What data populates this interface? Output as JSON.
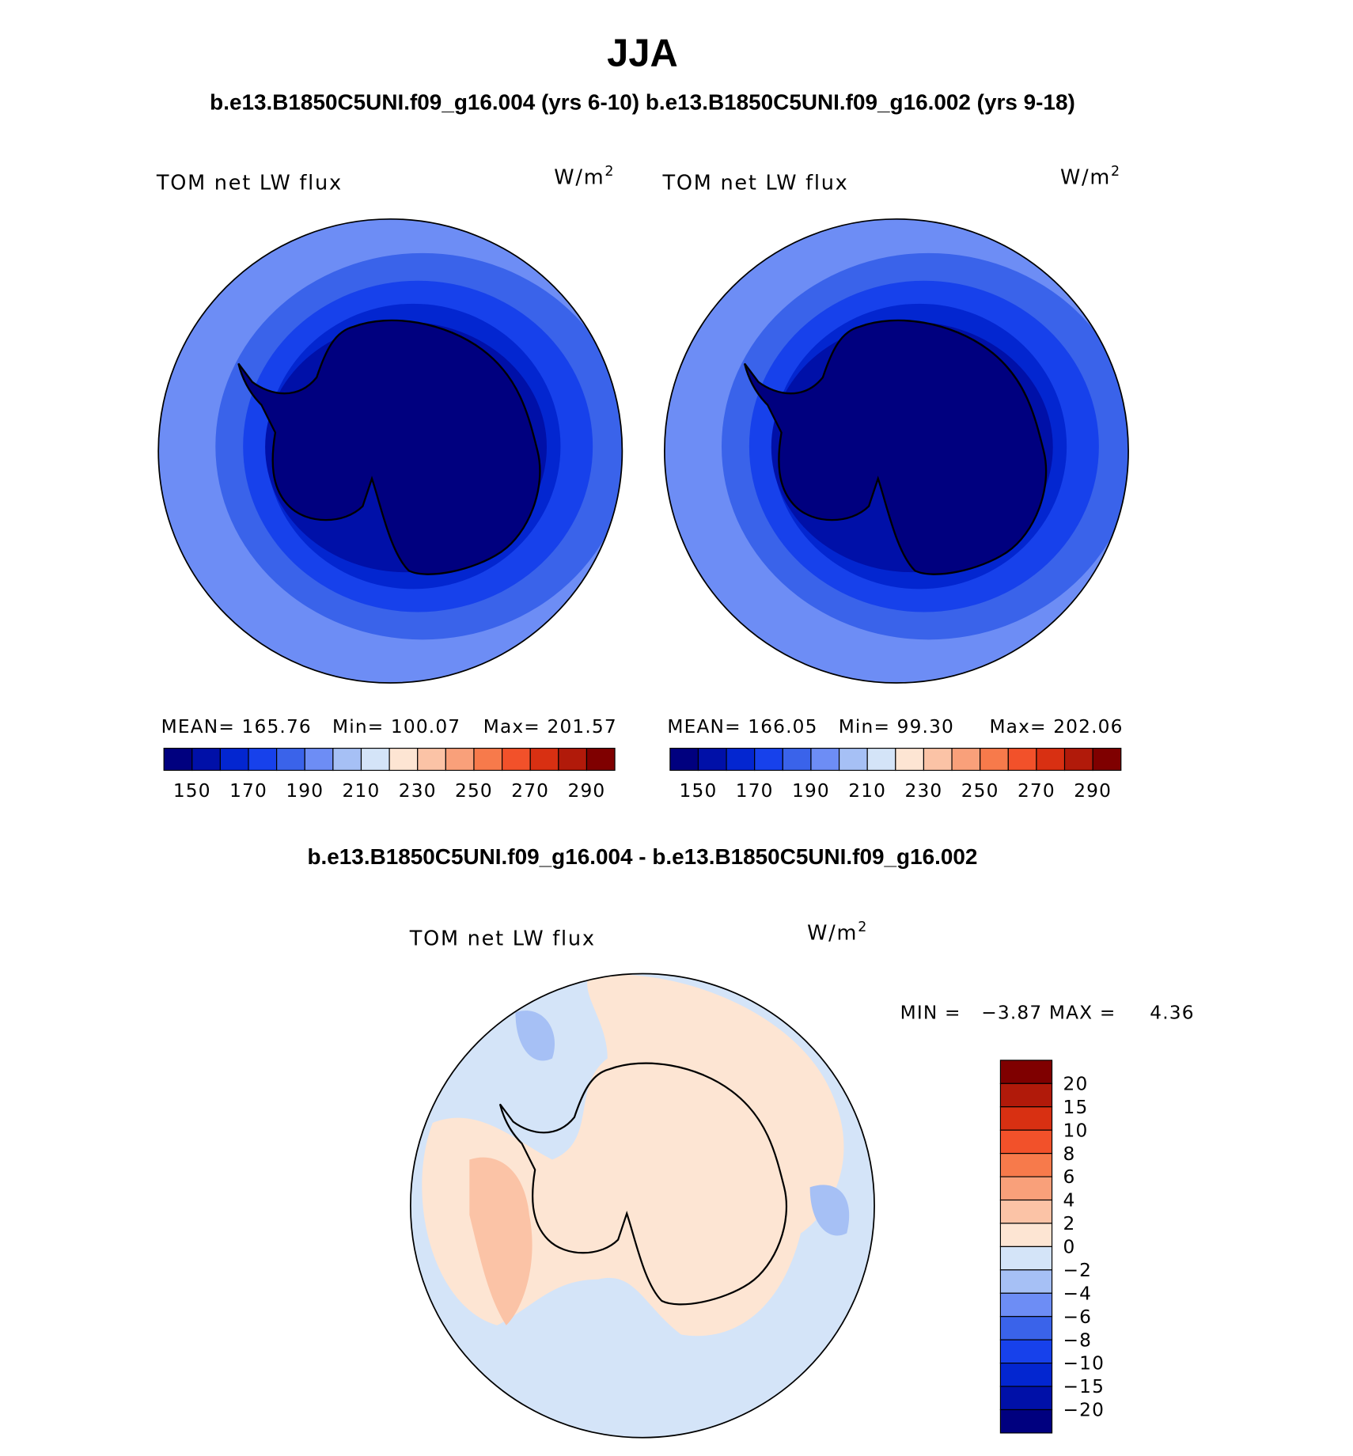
{
  "title": "JJA",
  "subtitle": "b.e13.B1850C5UNI.f09_g16.004 (yrs 6-10) b.e13.B1850C5UNI.f09_g16.002 (yrs 9-18)",
  "panels": [
    {
      "label": "TOM net LW flux",
      "units": "W/m",
      "units_exp": "2",
      "stats": [
        "MEAN= 165.76",
        "Min= 100.07",
        "Max= 201.57"
      ]
    },
    {
      "label": "TOM net LW flux",
      "units": "W/m",
      "units_exp": "2",
      "stats": [
        "MEAN= 166.05",
        "Min=  99.30",
        "Max= 202.06"
      ]
    }
  ],
  "colorbar": {
    "labels": [
      "150",
      "170",
      "190",
      "210",
      "230",
      "250",
      "270",
      "290"
    ],
    "colors": [
      "#00007f",
      "#0010a8",
      "#0326d0",
      "#1741eb",
      "#3a63ea",
      "#6d8df5",
      "#a6c0f5",
      "#d4e4f8",
      "#fde5d3",
      "#fbc3a6",
      "#f9a07a",
      "#f77a4b",
      "#f2512a",
      "#d83012",
      "#b11a0a",
      "#7f0000"
    ]
  },
  "difference": {
    "title": "b.e13.B1850C5UNI.f09_g16.004 - b.e13.B1850C5UNI.f09_g16.002",
    "label": "TOM net LW flux",
    "units": "W/m",
    "units_exp": "2",
    "stats": "MIN =   −3.87 MAX =     4.36",
    "colorbar_labels": [
      "20",
      "15",
      "10",
      "8",
      "6",
      "4",
      "2",
      "0",
      "−2",
      "−4",
      "−6",
      "−8",
      "−10",
      "−15",
      "−20"
    ]
  }
}
